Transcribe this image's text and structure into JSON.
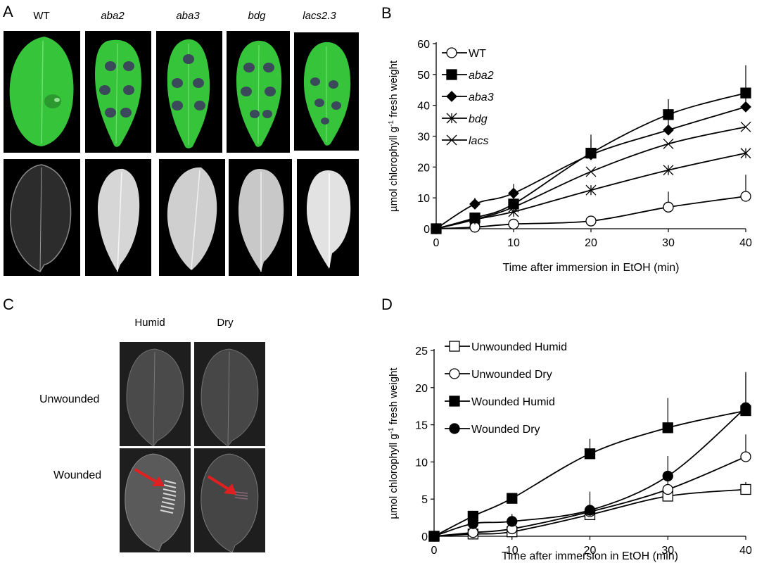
{
  "panels": {
    "A": {
      "letter": "A",
      "genotypes": [
        {
          "label": "WT",
          "italic": false
        },
        {
          "label": "aba2",
          "italic": true
        },
        {
          "label": "aba3",
          "italic": true
        },
        {
          "label": "bdg",
          "italic": true
        },
        {
          "label": "lacs2.3",
          "italic": true
        }
      ]
    },
    "B": {
      "letter": "B"
    },
    "C": {
      "letter": "C",
      "columns": [
        "Humid",
        "Dry"
      ],
      "rows": [
        "Unwounded",
        "Wounded"
      ]
    },
    "D": {
      "letter": "D"
    }
  },
  "colors": {
    "leaf_green": "#33cc33",
    "arrow_red": "#e02020",
    "line": "#000000"
  },
  "chart_data": [
    {
      "id": "B",
      "type": "line",
      "xlabel": "Time after immersion in EtOH (min)",
      "ylabel": "µmol chlorophyll g⁻¹ fresh weight",
      "ylabel_parts": [
        "µmol chlorophyll g",
        "-1",
        " fresh weight"
      ],
      "xlim": [
        0,
        40
      ],
      "ylim": [
        0,
        60
      ],
      "xticks": [
        0,
        10,
        20,
        30,
        40
      ],
      "yticks": [
        0,
        10,
        20,
        30,
        40,
        50,
        60
      ],
      "legend_position": "top-left",
      "x": [
        0,
        5,
        10,
        20,
        30,
        40
      ],
      "series": [
        {
          "name": "WT",
          "italic": false,
          "marker": "open-circle",
          "values": [
            0,
            0.5,
            1.5,
            2.5,
            7,
            10.5
          ],
          "err": [
            0,
            0.5,
            1,
            1,
            5,
            7
          ]
        },
        {
          "name": "aba2",
          "italic": true,
          "marker": "filled-square",
          "values": [
            0,
            3.5,
            8,
            24.5,
            37,
            44
          ],
          "err": [
            0,
            1,
            3,
            6,
            5,
            9
          ]
        },
        {
          "name": "aba3",
          "italic": true,
          "marker": "filled-diamond",
          "values": [
            0,
            8,
            11.5,
            24,
            32,
            39.5
          ],
          "err": [
            0,
            2,
            3,
            5,
            6,
            6
          ]
        },
        {
          "name": "bdg",
          "italic": true,
          "marker": "asterisk",
          "values": [
            0,
            3,
            5.5,
            12.5,
            19,
            24.5
          ],
          "err": [
            0,
            0,
            0,
            0,
            0,
            0
          ]
        },
        {
          "name": "lacs",
          "italic": true,
          "marker": "x-cross",
          "values": [
            0,
            3,
            7,
            18.5,
            27.5,
            33
          ],
          "err": [
            0,
            0,
            0,
            0,
            0,
            0
          ]
        }
      ]
    },
    {
      "id": "D",
      "type": "line",
      "xlabel": "Time after immersion in EtOH (min)",
      "ylabel": "µmol chlorophyll g⁻¹ fresh weight",
      "ylabel_parts": [
        "µmol chlorophyll g",
        "-1",
        " fresh weight"
      ],
      "xlim": [
        0,
        40
      ],
      "ylim": [
        0,
        25
      ],
      "xticks": [
        0,
        10,
        20,
        30,
        40
      ],
      "yticks": [
        0,
        5,
        10,
        15,
        20,
        25
      ],
      "legend_position": "top-left",
      "x": [
        0,
        5,
        10,
        20,
        30,
        40
      ],
      "series": [
        {
          "name": "Unwounded Humid",
          "italic": false,
          "marker": "open-square",
          "values": [
            0,
            0.3,
            0.6,
            2.9,
            5.4,
            6.3
          ],
          "err": [
            0,
            0,
            0.3,
            0.5,
            1,
            1
          ]
        },
        {
          "name": "Unwounded Dry",
          "italic": false,
          "marker": "open-circle",
          "values": [
            0,
            0.5,
            1.0,
            3.3,
            6.3,
            10.7
          ],
          "err": [
            0,
            0,
            0.5,
            0.7,
            1.5,
            3
          ]
        },
        {
          "name": "Wounded Humid",
          "italic": false,
          "marker": "filled-square",
          "values": [
            0,
            2.7,
            5.1,
            11.1,
            14.6,
            16.9
          ],
          "err": [
            0,
            0.5,
            0.5,
            2,
            4,
            5
          ]
        },
        {
          "name": "Wounded Dry",
          "italic": false,
          "marker": "filled-circle",
          "values": [
            0,
            1.7,
            2.0,
            3.5,
            8.1,
            17.3
          ],
          "err": [
            0,
            0.5,
            1,
            2.5,
            2.7,
            4.8
          ]
        }
      ]
    }
  ]
}
